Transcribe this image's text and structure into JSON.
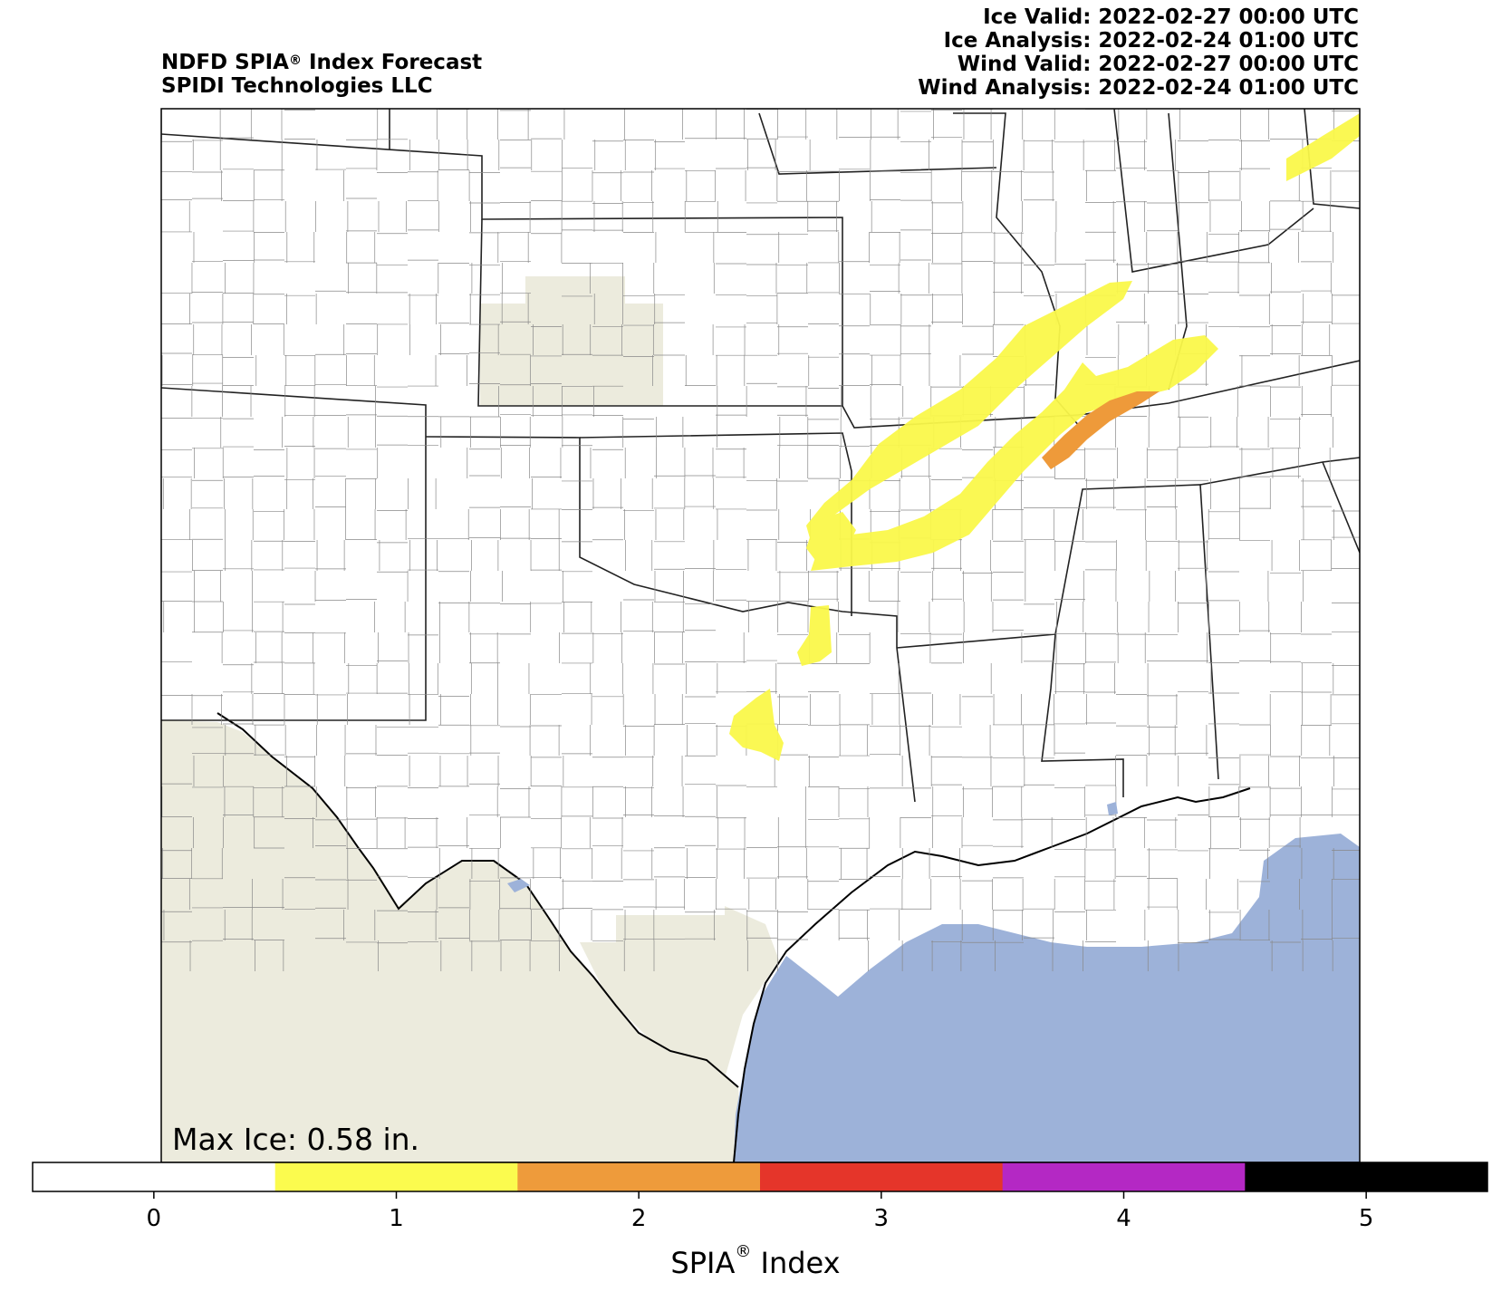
{
  "header": {
    "title_line1_prefix": "NDFD SPIA",
    "title_line1_suffix": " Index Forecast",
    "title_line2": "SPIDI Technologies LLC",
    "registered_mark": "®",
    "timestamps": [
      "Ice Valid: 2022-02-27 00:00 UTC",
      "Ice Analysis: 2022-02-24 01:00 UTC",
      "Wind Valid: 2022-02-27 00:00 UTC",
      "Wind Analysis: 2022-02-24 01:00 UTC"
    ]
  },
  "map": {
    "max_ice_label": "Max Ice: 0.58 in.",
    "colors": {
      "land": "#ffffff",
      "outside_land": "#ecebdd",
      "gulf": "#9db2d9",
      "level1": "#faf84a",
      "level2": "#ee9a3a"
    }
  },
  "colorbar": {
    "label_prefix": "SPIA",
    "label_suffix": " Index",
    "registered_mark": "®",
    "ticks": [
      "0",
      "1",
      "2",
      "3",
      "4",
      "5"
    ],
    "colors": [
      "#ffffff",
      "#fbfb4e",
      "#ee9b3b",
      "#e5352a",
      "#b428c4",
      "#000000"
    ]
  }
}
